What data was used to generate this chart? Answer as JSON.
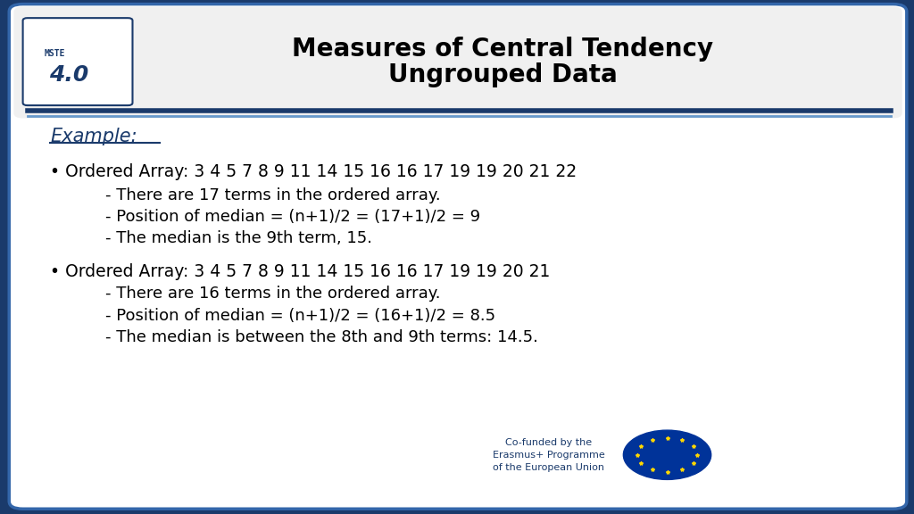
{
  "title_line1": "Measures of Central Tendency",
  "title_line2": "Ungrouped Data",
  "background_outer": "#1a3a6b",
  "background_inner": "#ffffff",
  "title_color": "#000000",
  "example_label": "Example:",
  "bullet1_main": "• Ordered Array: 3 4 5 7 8 9 11 14 15 16 16 17 19 19 20 21 22",
  "bullet1_sub1": "- There are 17 terms in the ordered array.",
  "bullet1_sub2": "- Position of median = (n+1)/2 = (17+1)/2 = 9",
  "bullet1_sub3": "- The median is the 9th term, 15.",
  "bullet2_main": "• Ordered Array: 3 4 5 7 8 9 11 14 15 16 16 17 19 19 20 21",
  "bullet2_sub1": "- There are 16 terms in the ordered array.",
  "bullet2_sub2": "- Position of median = (n+1)/2 = (16+1)/2 = 8.5",
  "bullet2_sub3": "- The median is between the 8th and 9th terms: 14.5.",
  "footer_text": "Co-funded by the\nErasmus+ Programme\nof the European Union",
  "header_line_color_dark": "#1a3a6b",
  "header_line_color_light": "#6699cc",
  "accent_blue": "#1a3a6b"
}
